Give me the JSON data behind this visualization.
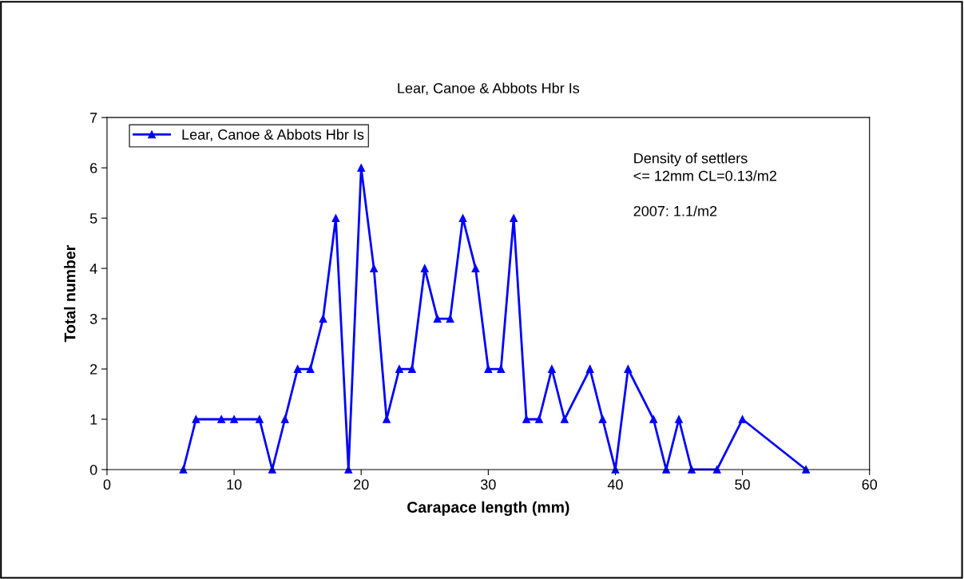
{
  "chart_data": {
    "type": "line",
    "title": "Lear, Canoe & Abbots Hbr Is",
    "xlabel": "Carapace length (mm)",
    "ylabel": "Total number",
    "series": [
      {
        "name": "Lear, Canoe & Abbots Hbr Is",
        "color": "#0000ff",
        "x": [
          6,
          7,
          9,
          10,
          12,
          13,
          14,
          15,
          16,
          17,
          18,
          19,
          20,
          21,
          22,
          23,
          24,
          25,
          26,
          27,
          28,
          29,
          30,
          31,
          32,
          33,
          34,
          35,
          36,
          38,
          39,
          40,
          41,
          43,
          44,
          45,
          46,
          48,
          50,
          55
        ],
        "values": [
          0,
          1,
          1,
          1,
          1,
          0,
          1,
          2,
          2,
          3,
          5,
          0,
          6,
          4,
          1,
          2,
          2,
          4,
          3,
          3,
          5,
          4,
          2,
          2,
          5,
          1,
          1,
          2,
          1,
          2,
          1,
          0,
          2,
          1,
          0,
          1,
          0,
          0,
          1,
          0
        ]
      }
    ],
    "xlim": [
      0,
      60
    ],
    "xticks": [
      0,
      10,
      20,
      30,
      40,
      50,
      60
    ],
    "ylim": [
      0,
      7
    ],
    "yticks": [
      0,
      1,
      2,
      3,
      4,
      5,
      6,
      7
    ],
    "marker": "triangle",
    "line_style": "solid",
    "grid": false,
    "legend": "top left",
    "annotations": [
      "Density of settlers\n<= 12mm CL=0.13/m2\n\n2007: 1.1/m2"
    ]
  }
}
